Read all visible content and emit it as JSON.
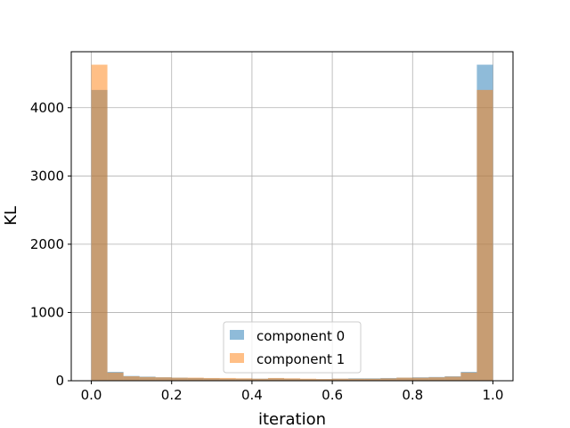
{
  "chart_data": {
    "type": "bar",
    "subtype": "histogram-overlay",
    "xlabel": "iteration",
    "ylabel": "KL",
    "xlim": [
      -0.05,
      1.05
    ],
    "ylim": [
      0,
      4820
    ],
    "xticks": [
      0.0,
      0.2,
      0.4,
      0.6,
      0.8,
      1.0
    ],
    "xtick_labels": [
      "0.0",
      "0.2",
      "0.4",
      "0.6",
      "0.8",
      "1.0"
    ],
    "yticks": [
      0,
      1000,
      2000,
      3000,
      4000
    ],
    "ytick_labels": [
      "0",
      "1000",
      "2000",
      "3000",
      "4000"
    ],
    "grid": true,
    "legend_position": "lower-center",
    "bins": 25,
    "bin_range": [
      0,
      1
    ],
    "series": [
      {
        "name": "component 0",
        "color": "#1f77b4",
        "alpha": 0.5,
        "values": [
          4260,
          130,
          70,
          60,
          50,
          45,
          40,
          35,
          30,
          30,
          30,
          35,
          30,
          25,
          25,
          30,
          35,
          35,
          40,
          45,
          50,
          55,
          65,
          130,
          4630
        ]
      },
      {
        "name": "component 1",
        "color": "#ff7f0e",
        "alpha": 0.5,
        "values": [
          4630,
          120,
          65,
          55,
          50,
          45,
          45,
          40,
          40,
          35,
          30,
          40,
          35,
          30,
          25,
          30,
          30,
          30,
          35,
          45,
          45,
          50,
          60,
          120,
          4260
        ]
      }
    ]
  }
}
